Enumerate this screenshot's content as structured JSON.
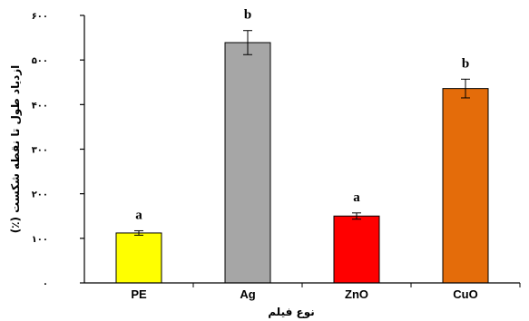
{
  "chart_data": {
    "type": "bar",
    "xlabel": "نوع فیلم",
    "ylabel": "ازدیاد طول تا نقطه شکست (٪)",
    "ylim": [
      0,
      600
    ],
    "yticks": [
      0,
      100,
      200,
      300,
      400,
      500,
      600
    ],
    "ytick_labels": [
      "۰",
      "۱۰۰",
      "۲۰۰",
      "۳۰۰",
      "۴۰۰",
      "۵۰۰",
      "۶۰۰"
    ],
    "grid": false,
    "legend": "none",
    "categories": [
      "PE",
      "Ag",
      "ZnO",
      "CuO"
    ],
    "values": [
      112,
      539,
      150,
      436
    ],
    "errors": [
      5,
      27,
      7,
      21
    ],
    "significance": [
      "a",
      "b",
      "a",
      "b"
    ],
    "colors": [
      "#ffff00",
      "#a6a6a6",
      "#ff0000",
      "#e46c0a"
    ]
  }
}
